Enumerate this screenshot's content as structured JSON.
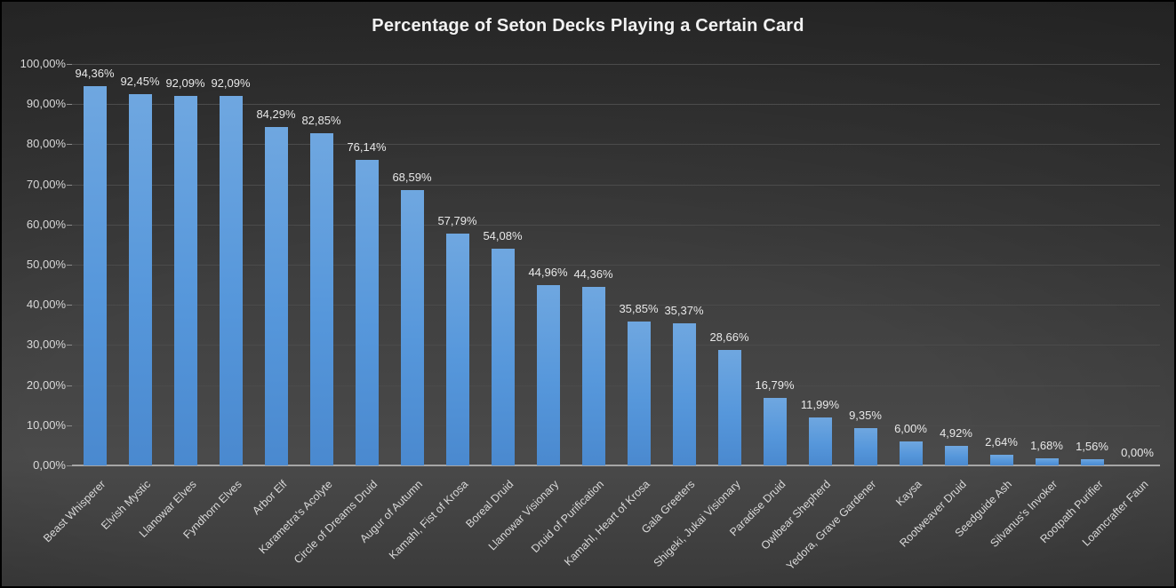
{
  "chart_data": {
    "type": "bar",
    "title": "Percentage of Seton Decks Playing a Certain Card",
    "categories": [
      "Beast Whisperer",
      "Elvish Mystic",
      "Llanowar Elves",
      "Fyndhorn Elves",
      "Arbor Elf",
      "Karametra's Acolyte",
      "Circle of Dreams Druid",
      "Augur of Autumn",
      "Kamahl, Fist of Krosa",
      "Boreal Druid",
      "Llanowar Visionary",
      "Druid of Purification",
      "Kamahl, Heart of Krosa",
      "Gala Greeters",
      "Shigeki, Jukai Visionary",
      "Paradise Druid",
      "Owlbear Shepherd",
      "Yedora, Grave Gardener",
      "Kaysa",
      "Rootweaver Druid",
      "Seedguide Ash",
      "Silvanus's Invoker",
      "Rootpath Purifier",
      "Loamcrafter Faun"
    ],
    "values": [
      94.36,
      92.45,
      92.09,
      92.09,
      84.29,
      82.85,
      76.14,
      68.59,
      57.79,
      54.08,
      44.96,
      44.36,
      35.85,
      35.37,
      28.66,
      16.79,
      11.99,
      9.35,
      6.0,
      4.92,
      2.64,
      1.68,
      1.56,
      0.0
    ],
    "value_labels": [
      "94,36%",
      "92,45%",
      "92,09%",
      "92,09%",
      "84,29%",
      "82,85%",
      "76,14%",
      "68,59%",
      "57,79%",
      "54,08%",
      "44,96%",
      "44,36%",
      "35,85%",
      "35,37%",
      "28,66%",
      "16,79%",
      "11,99%",
      "9,35%",
      "6,00%",
      "4,92%",
      "2,64%",
      "1,68%",
      "1,56%",
      "0,00%"
    ],
    "xlabel": "",
    "ylabel": "",
    "ylim": [
      0,
      100
    ],
    "y_tick_step": 10,
    "y_tick_labels": [
      "0,00%",
      "10,00%",
      "20,00%",
      "30,00%",
      "40,00%",
      "50,00%",
      "60,00%",
      "70,00%",
      "80,00%",
      "90,00%",
      "100,00%"
    ],
    "grid": true,
    "legend": false,
    "number_format": "comma-decimal-percent"
  },
  "colors": {
    "title_text": "#f2f2f2",
    "bar_top": "#6fa7e0",
    "bar_mid": "#5697db",
    "bar_bottom": "#4a89cf",
    "gridline": "#4b4b4b",
    "axis_line": "#a6a6a6",
    "tick_mark": "#8c8c8c",
    "value_label_text": "#e8e8e8",
    "axis_label_text": "#d9d9d9"
  }
}
